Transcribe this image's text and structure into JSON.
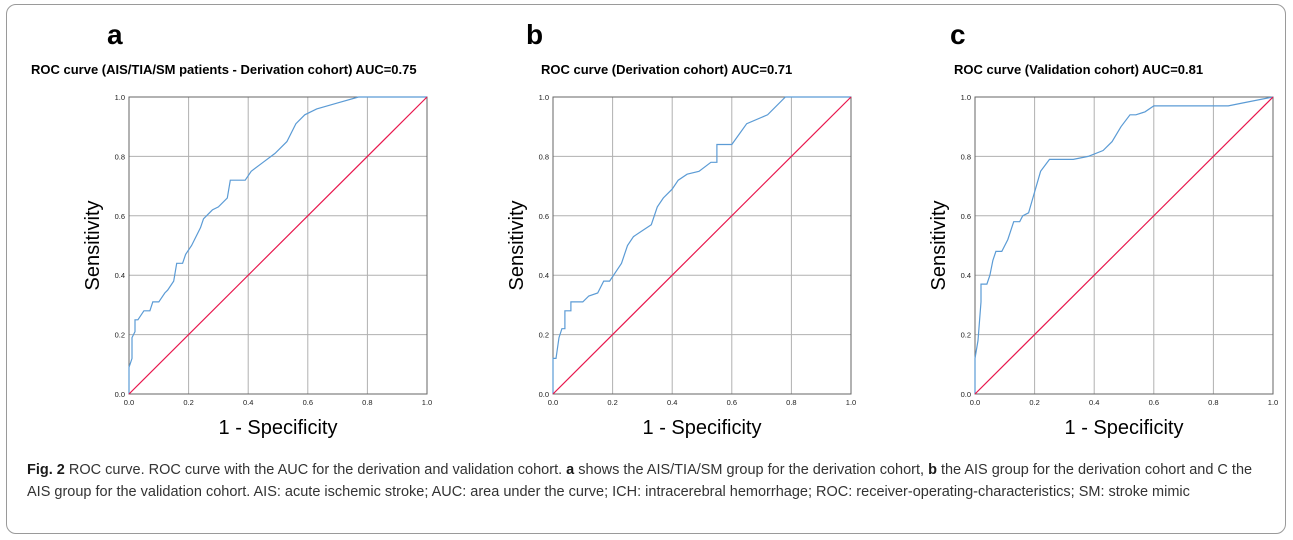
{
  "panels": [
    {
      "letter": "a",
      "title": "ROC curve (AIS/TIA/SM patients - Derivation cohort) AUC=0.75",
      "chart_data": {
        "type": "line",
        "xlabel": "1 - Specificity",
        "ylabel": "Sensitivity",
        "xlim": [
          0,
          1
        ],
        "ylim": [
          0,
          1
        ],
        "xticks": [
          "0.0",
          "0.2",
          "0.4",
          "0.6",
          "0.8",
          "1.0"
        ],
        "yticks": [
          "0.0",
          "0.2",
          "0.4",
          "0.6",
          "0.8",
          "1.0"
        ],
        "grid": true,
        "series": [
          {
            "role": "roc",
            "color": "#5b9bd5",
            "x": [
              0,
              0,
              0.01,
              0.01,
              0.02,
              0.02,
              0.03,
              0.03,
              0.05,
              0.05,
              0.06,
              0.07,
              0.08,
              0.09,
              0.1,
              0.12,
              0.13,
              0.15,
              0.16,
              0.18,
              0.19,
              0.21,
              0.24,
              0.25,
              0.28,
              0.3,
              0.33,
              0.34,
              0.35,
              0.37,
              0.39,
              0.41,
              0.45,
              0.49,
              0.53,
              0.56,
              0.59,
              0.63,
              0.7,
              0.77,
              0.8,
              1.0
            ],
            "y": [
              0,
              0.09,
              0.12,
              0.19,
              0.21,
              0.25,
              0.25,
              0.25,
              0.28,
              0.28,
              0.28,
              0.28,
              0.31,
              0.31,
              0.31,
              0.34,
              0.35,
              0.38,
              0.44,
              0.44,
              0.47,
              0.5,
              0.56,
              0.59,
              0.62,
              0.63,
              0.66,
              0.72,
              0.72,
              0.72,
              0.72,
              0.75,
              0.78,
              0.81,
              0.85,
              0.91,
              0.94,
              0.96,
              0.98,
              1.0,
              1.0,
              1.0
            ]
          },
          {
            "role": "reference",
            "color": "#e8174d",
            "x": [
              0,
              1
            ],
            "y": [
              0,
              1
            ]
          }
        ]
      }
    },
    {
      "letter": "b",
      "title": "ROC curve (Derivation cohort) AUC=0.71",
      "chart_data": {
        "type": "line",
        "xlabel": "1 - Specificity",
        "ylabel": "Sensitivity",
        "xlim": [
          0,
          1
        ],
        "ylim": [
          0,
          1
        ],
        "xticks": [
          "0.0",
          "0.2",
          "0.4",
          "0.6",
          "0.8",
          "1.0"
        ],
        "yticks": [
          "0.0",
          "0.2",
          "0.4",
          "0.6",
          "0.8",
          "1.0"
        ],
        "grid": true,
        "series": [
          {
            "role": "roc",
            "color": "#5b9bd5",
            "x": [
              0,
              0,
              0.01,
              0.02,
              0.03,
              0.04,
              0.04,
              0.06,
              0.06,
              0.08,
              0.1,
              0.12,
              0.15,
              0.17,
              0.19,
              0.21,
              0.23,
              0.25,
              0.27,
              0.3,
              0.33,
              0.35,
              0.37,
              0.4,
              0.42,
              0.45,
              0.49,
              0.53,
              0.55,
              0.55,
              0.58,
              0.6,
              0.65,
              0.72,
              0.78,
              0.8,
              1.0
            ],
            "y": [
              0,
              0.12,
              0.12,
              0.19,
              0.22,
              0.22,
              0.28,
              0.28,
              0.31,
              0.31,
              0.31,
              0.33,
              0.34,
              0.38,
              0.38,
              0.41,
              0.44,
              0.5,
              0.53,
              0.55,
              0.57,
              0.63,
              0.66,
              0.69,
              0.72,
              0.74,
              0.75,
              0.78,
              0.78,
              0.84,
              0.84,
              0.84,
              0.91,
              0.94,
              1.0,
              1.0,
              1.0
            ]
          },
          {
            "role": "reference",
            "color": "#e8174d",
            "x": [
              0,
              1
            ],
            "y": [
              0,
              1
            ]
          }
        ]
      }
    },
    {
      "letter": "c",
      "title": "ROC curve (Validation cohort) AUC=0.81",
      "chart_data": {
        "type": "line",
        "xlabel": "1 - Specificity",
        "ylabel": "Sensitivity",
        "xlim": [
          0,
          1
        ],
        "ylim": [
          0,
          1
        ],
        "xticks": [
          "0.0",
          "0.2",
          "0.4",
          "0.6",
          "0.8",
          "1.0"
        ],
        "yticks": [
          "0.0",
          "0.2",
          "0.4",
          "0.6",
          "0.8",
          "1.0"
        ],
        "grid": true,
        "series": [
          {
            "role": "roc",
            "color": "#5b9bd5",
            "x": [
              0,
              0,
              0.01,
              0.01,
              0.02,
              0.02,
              0.03,
              0.04,
              0.05,
              0.06,
              0.07,
              0.08,
              0.09,
              0.11,
              0.13,
              0.15,
              0.16,
              0.18,
              0.2,
              0.22,
              0.25,
              0.27,
              0.3,
              0.33,
              0.38,
              0.43,
              0.46,
              0.49,
              0.52,
              0.54,
              0.57,
              0.6,
              0.62,
              0.65,
              0.75,
              0.85,
              0.9,
              1.0
            ],
            "y": [
              0,
              0.12,
              0.18,
              0.18,
              0.31,
              0.37,
              0.37,
              0.37,
              0.4,
              0.45,
              0.48,
              0.48,
              0.48,
              0.52,
              0.58,
              0.58,
              0.6,
              0.61,
              0.68,
              0.75,
              0.79,
              0.79,
              0.79,
              0.79,
              0.8,
              0.82,
              0.85,
              0.9,
              0.94,
              0.94,
              0.95,
              0.97,
              0.97,
              0.97,
              0.97,
              0.97,
              0.98,
              1.0
            ]
          },
          {
            "role": "reference",
            "color": "#e8174d",
            "x": [
              0,
              1
            ],
            "y": [
              0,
              1
            ]
          }
        ]
      }
    }
  ],
  "caption": {
    "fig_label": "Fig. 2",
    "part1": " ROC curve. ROC curve with the AUC for the derivation and validation cohort. ",
    "a_label": "a",
    "part2": " shows the AIS/TIA/SM group for the derivation cohort, ",
    "b_label": "b",
    "part3": " the AIS group for the derivation cohort and C the AIS group for the validation cohort. AIS: acute ischemic stroke; AUC: area under the curve; ICH: intracerebral hemorrhage; ROC: receiver-operating-characteristics; SM: stroke mimic"
  }
}
